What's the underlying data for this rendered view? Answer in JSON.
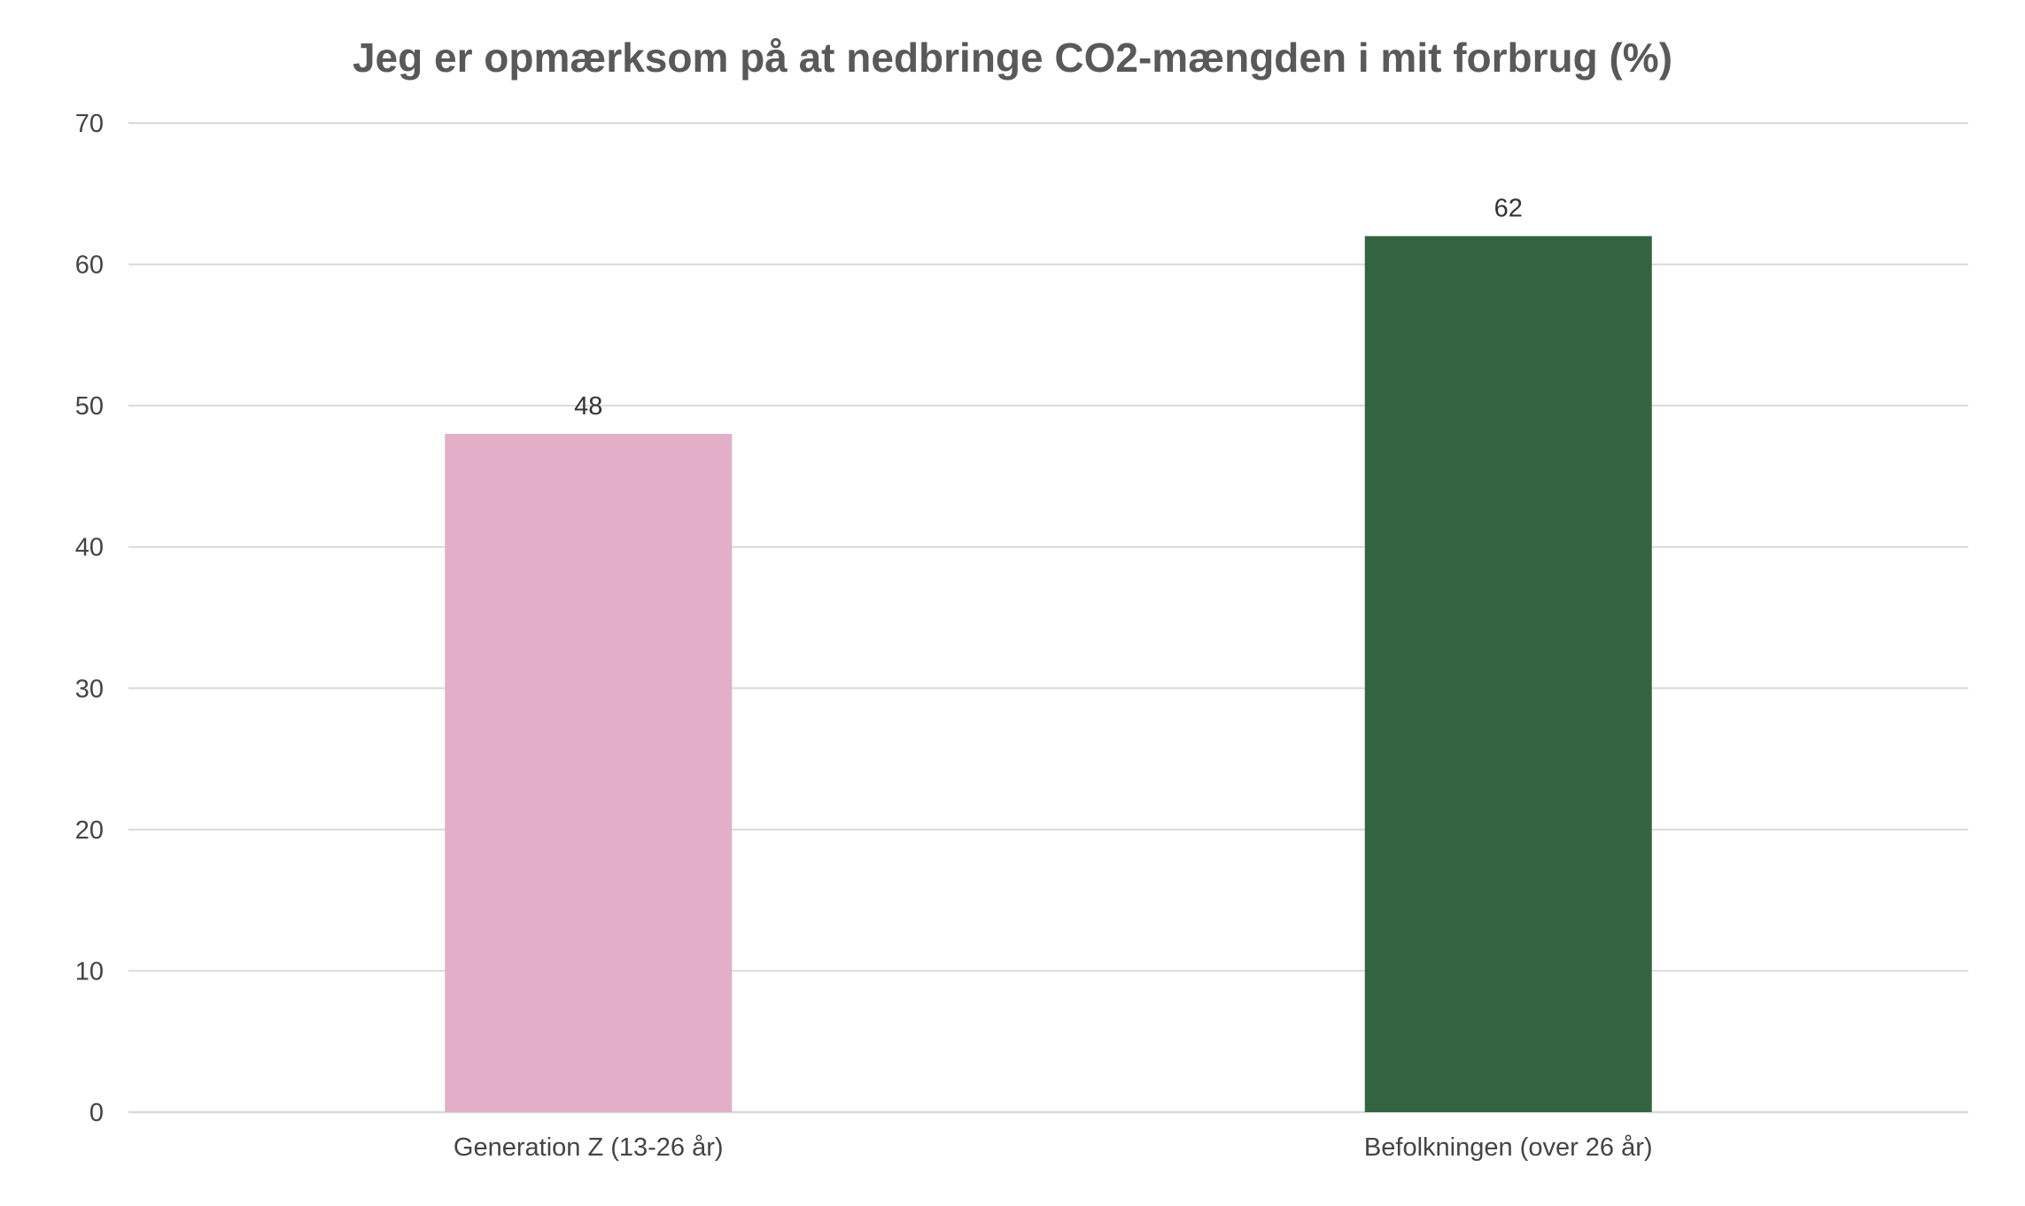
{
  "chart_data": {
    "type": "bar",
    "title": "Jeg er opmærksom på at nedbringe CO2-mængden i mit forbrug (%)",
    "xlabel": "",
    "ylabel": "",
    "categories": [
      "Generation Z (13-26 år)",
      "Befolkningen (over 26 år)"
    ],
    "values": [
      48,
      62
    ],
    "colors": [
      "#e3aec7",
      "#336340"
    ],
    "data_labels": [
      "48",
      "62"
    ],
    "ylim": [
      0,
      70
    ],
    "yticks": [
      0,
      10,
      20,
      30,
      40,
      50,
      60,
      70
    ],
    "ytick_labels": [
      "0",
      "10",
      "20",
      "30",
      "40",
      "50",
      "60",
      "70"
    ],
    "grid": true,
    "legend": "none",
    "gridline_color": "#d9d9d9"
  }
}
